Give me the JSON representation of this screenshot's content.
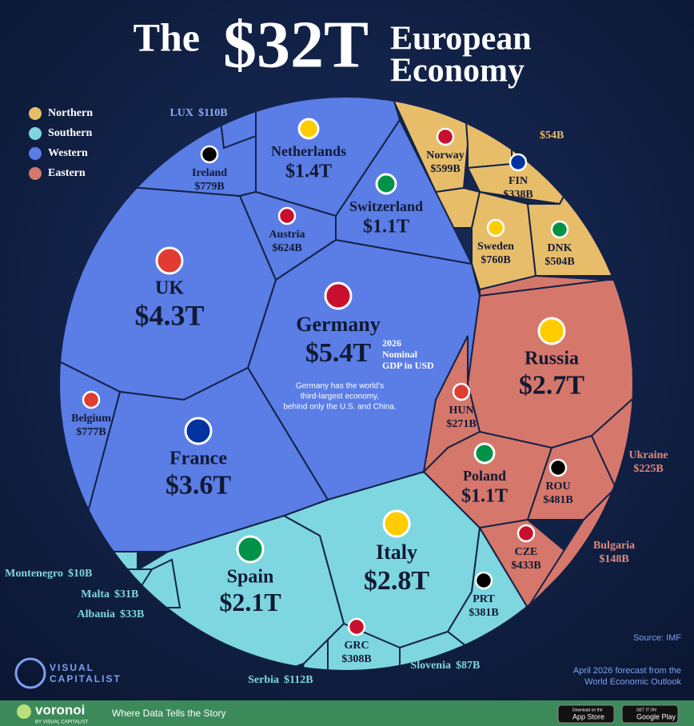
{
  "chart_data": {
    "type": "voronoi",
    "title": [
      "The",
      "$32T",
      "European",
      "Economy"
    ],
    "subtitle": [
      "2026",
      "Nominal",
      "GDP in USD"
    ],
    "annotation": [
      "Germany has the world's",
      "third-largest economy,",
      "behind only the U.S. and China."
    ],
    "series": [
      {
        "name": "Northern",
        "color": "#e8bd6a",
        "categories": [
          "Norway",
          null,
          "FIN",
          "Sweden",
          "DNK"
        ],
        "values": [
          599,
          54,
          338,
          760,
          504
        ],
        "value_labels": [
          "$599B",
          "$54B",
          "$338B",
          "$760B",
          "$504B"
        ]
      },
      {
        "name": "Southern",
        "color": "#7ed6e0",
        "categories": [
          "Italy",
          "Spain",
          "PRT",
          "GRC",
          "Slovenia",
          "Serbia",
          "Montenegro",
          "Malta",
          "Albania"
        ],
        "values": [
          2800,
          2100,
          381,
          308,
          87,
          112,
          10,
          31,
          33
        ],
        "value_labels": [
          "$2.8T",
          "$2.1T",
          "$381B",
          "$308B",
          "$87B",
          "$112B",
          "$10B",
          "$31B",
          "$33B"
        ]
      },
      {
        "name": "Western",
        "color": "#5a7de6",
        "categories": [
          "Germany",
          "UK",
          "France",
          "Netherlands",
          "Switzerland",
          "Ireland",
          "Austria",
          "Belgium",
          "LUX"
        ],
        "values": [
          5400,
          4300,
          3600,
          1400,
          1100,
          779,
          624,
          777,
          110
        ],
        "value_labels": [
          "$5.4T",
          "$4.3T",
          "$3.6T",
          "$1.4T",
          "$1.1T",
          "$779B",
          "$624B",
          "$777B",
          "$110B"
        ]
      },
      {
        "name": "Eastern",
        "color": "#d6776b",
        "categories": [
          "Russia",
          "Poland",
          "ROU",
          "CZE",
          "HUN",
          "Ukraine",
          "Bulgaria"
        ],
        "values": [
          2700,
          1100,
          481,
          433,
          271,
          225,
          148
        ],
        "value_labels": [
          "$2.7T",
          "$1.1T",
          "$481B",
          "$433B",
          "$271B",
          "$225B",
          "$148B"
        ]
      }
    ],
    "legend": "top-left",
    "source": [
      "Source: IMF",
      "April 2026 forecast from the",
      "World Economic Outlook"
    ]
  },
  "footer": {
    "brand": [
      "VISUAL",
      "CAPITALIST"
    ],
    "app": "voronoi",
    "app_by": "BY VISUAL CAPITALIST",
    "tagline": "Where Data Tells the Story",
    "app_store": [
      "Download on the",
      "App Store"
    ],
    "google_play": [
      "GET IT ON",
      "Google Play"
    ]
  }
}
